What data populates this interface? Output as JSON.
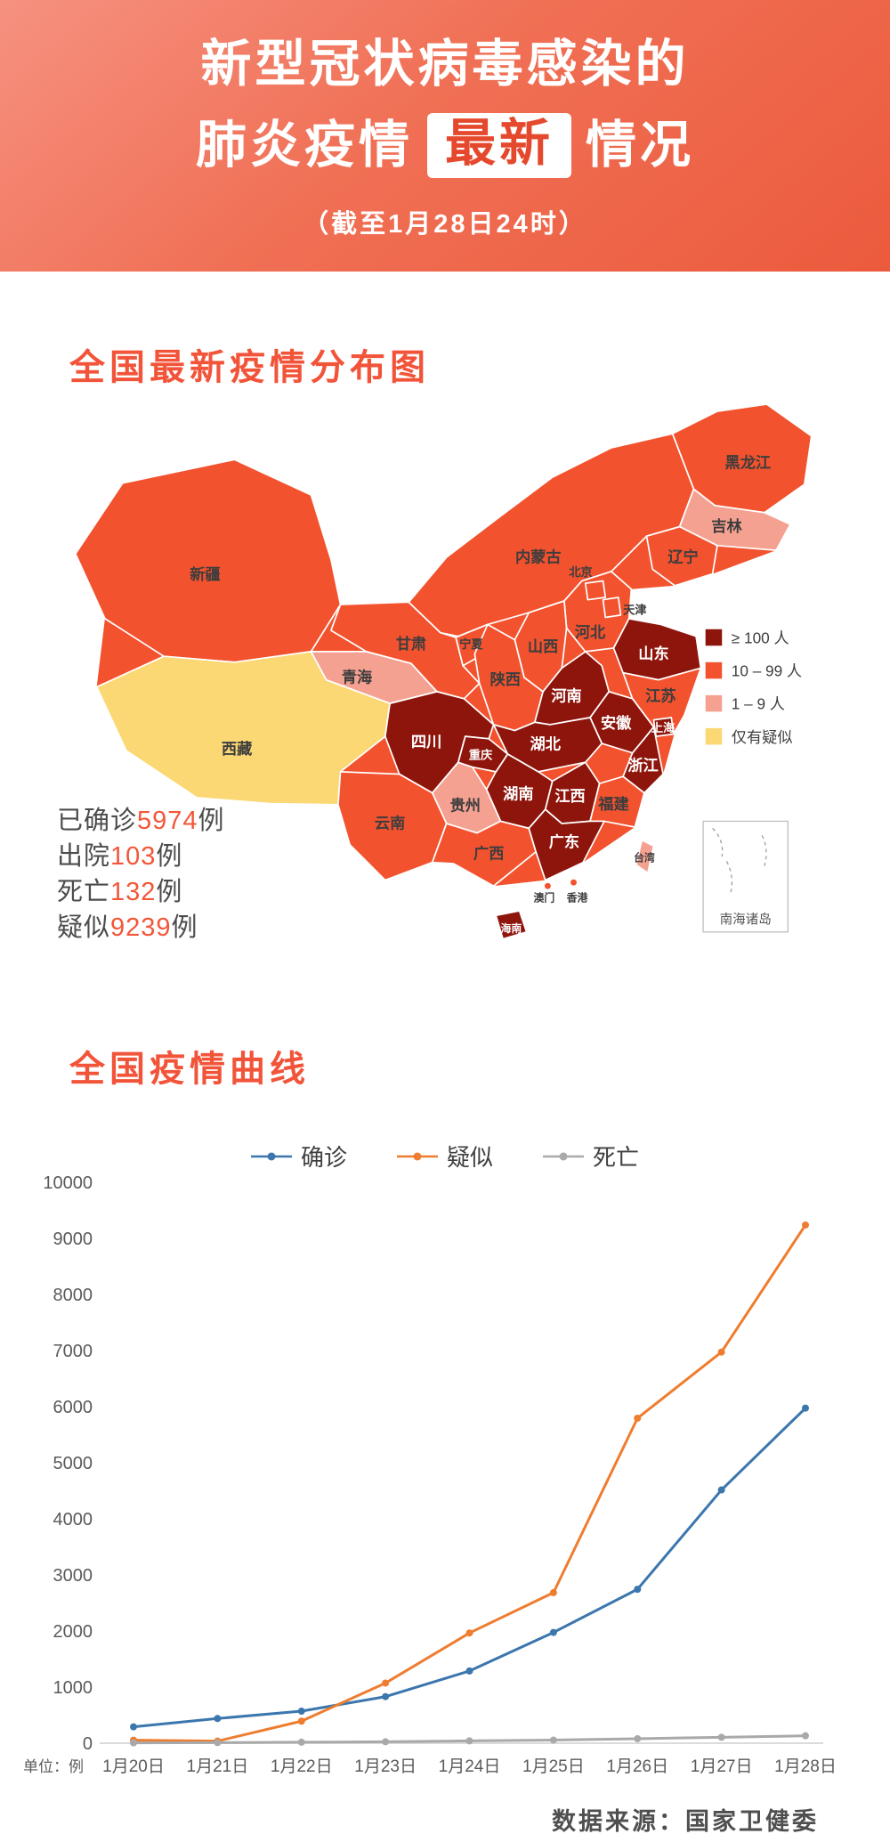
{
  "header": {
    "title_line1": "新型冠状病毒感染的",
    "title_line2_pre": "肺炎疫情",
    "title_line2_highlight": "最新",
    "title_line2_post": "情况",
    "subtitle": "（截至1月28日24时）"
  },
  "map": {
    "title": "全国最新疫情分布图",
    "legend": [
      {
        "label": "≥ 100 人",
        "color": "#8e150c"
      },
      {
        "label": "10 – 99 人",
        "color": "#f2522e"
      },
      {
        "label": "1 – 9 人",
        "color": "#f5a191"
      },
      {
        "label": "仅有疑似",
        "color": "#fbd874"
      }
    ],
    "stats": [
      {
        "label": "已确诊",
        "value": "5974",
        "unit": "例"
      },
      {
        "label": "出院",
        "value": "103",
        "unit": "例"
      },
      {
        "label": "死亡",
        "value": "132",
        "unit": "例"
      },
      {
        "label": "疑似",
        "value": "9239",
        "unit": "例"
      }
    ],
    "inset_label": "南海诸岛",
    "provinces": {
      "xinjiang": {
        "name": "新疆",
        "category": 1
      },
      "xizang": {
        "name": "西藏",
        "category": 3
      },
      "qinghai": {
        "name": "青海",
        "category": 2
      },
      "gansu": {
        "name": "甘肃",
        "category": 1
      },
      "neimenggu": {
        "name": "内蒙古",
        "category": 1
      },
      "heilongjiang": {
        "name": "黑龙江",
        "category": 1
      },
      "jilin": {
        "name": "吉林",
        "category": 2
      },
      "liaoning": {
        "name": "辽宁",
        "category": 1
      },
      "beijing": {
        "name": "北京",
        "category": 1
      },
      "tianjin": {
        "name": "天津",
        "category": 1
      },
      "hebei": {
        "name": "河北",
        "category": 1
      },
      "shanxi": {
        "name": "山西",
        "category": 1
      },
      "shandong": {
        "name": "山东",
        "category": 0
      },
      "ningxia": {
        "name": "宁夏",
        "category": 1
      },
      "shaanxi": {
        "name": "陕西",
        "category": 1
      },
      "henan": {
        "name": "河南",
        "category": 0
      },
      "jiangsu": {
        "name": "江苏",
        "category": 1
      },
      "anhui": {
        "name": "安徽",
        "category": 0
      },
      "shanghai": {
        "name": "上海",
        "category": 0
      },
      "hubei": {
        "name": "湖北",
        "category": 0
      },
      "sichuan": {
        "name": "四川",
        "category": 0
      },
      "chongqing": {
        "name": "重庆",
        "category": 0
      },
      "zhejiang": {
        "name": "浙江",
        "category": 0
      },
      "hunan": {
        "name": "湖南",
        "category": 0
      },
      "jiangxi": {
        "name": "江西",
        "category": 0
      },
      "guizhou": {
        "name": "贵州",
        "category": 2
      },
      "fujian": {
        "name": "福建",
        "category": 1
      },
      "yunnan": {
        "name": "云南",
        "category": 1
      },
      "guangxi": {
        "name": "广西",
        "category": 1
      },
      "guangdong": {
        "name": "广东",
        "category": 0
      },
      "hainan": {
        "name": "海南",
        "category": 0
      },
      "taiwan": {
        "name": "台湾",
        "category": 2
      },
      "xianggang": {
        "name": "香港",
        "category": 1
      },
      "aomen": {
        "name": "澳门",
        "category": 1
      }
    }
  },
  "chart_data": {
    "type": "line",
    "title": "全国疫情曲线",
    "unit_label": "单位：例",
    "x": [
      "1月20日",
      "1月21日",
      "1月22日",
      "1月23日",
      "1月24日",
      "1月25日",
      "1月26日",
      "1月27日",
      "1月28日"
    ],
    "series": [
      {
        "name": "确诊",
        "color": "#3b76ad",
        "values": [
          291,
          440,
          571,
          830,
          1287,
          1975,
          2744,
          4515,
          5974
        ]
      },
      {
        "name": "疑似",
        "color": "#ee7d2f",
        "values": [
          54,
          37,
          393,
          1072,
          1965,
          2684,
          5794,
          6973,
          9239
        ]
      },
      {
        "name": "死亡",
        "color": "#a9a9a9",
        "values": [
          6,
          9,
          17,
          25,
          41,
          56,
          80,
          106,
          132
        ]
      }
    ],
    "ylim": [
      0,
      10000
    ],
    "ytick_step": 1000,
    "grid": false,
    "legend_position": "top"
  },
  "source_note": "数据来源：国家卫健委"
}
